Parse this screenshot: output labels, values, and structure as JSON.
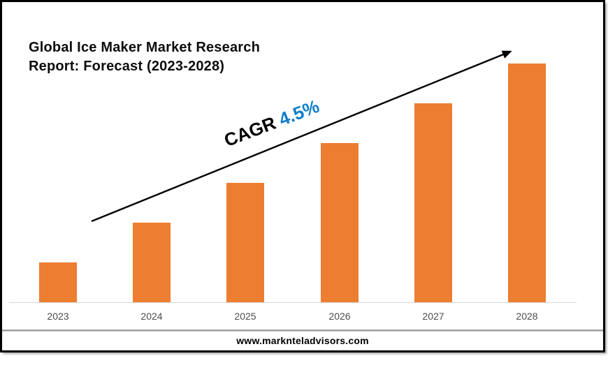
{
  "title": {
    "line1": "Global Ice Maker Market Research",
    "line2": "Report: Forecast (2023-2028)"
  },
  "annotation": {
    "label": "CAGR ",
    "value": "4.5%",
    "label_color": "#000000",
    "value_color": "#0f7dc9"
  },
  "footer": {
    "url": "www.marknteladvisors.com"
  },
  "colors": {
    "bar": "#ED7D31",
    "axis_line": "#d6d6d6",
    "tick_label": "#4c4c4c",
    "arrow": "#000000",
    "frame_border": "#000000"
  },
  "chart_data": {
    "type": "bar",
    "title": "Global Ice Maker Market Research Report: Forecast (2023-2028)",
    "categories": [
      "2023",
      "2024",
      "2025",
      "2026",
      "2027",
      "2028"
    ],
    "values": [
      1,
      2,
      3,
      4,
      5,
      6
    ],
    "values_note": "No y-axis or data labels shown; values are relative bar heights (steady linear growth).",
    "xlabel": "",
    "ylabel": "",
    "legend": false,
    "grid": false,
    "bar_color": "#ED7D31",
    "annotations": [
      "CAGR 4.5%",
      "upward trend arrow from first bar to last bar"
    ]
  }
}
